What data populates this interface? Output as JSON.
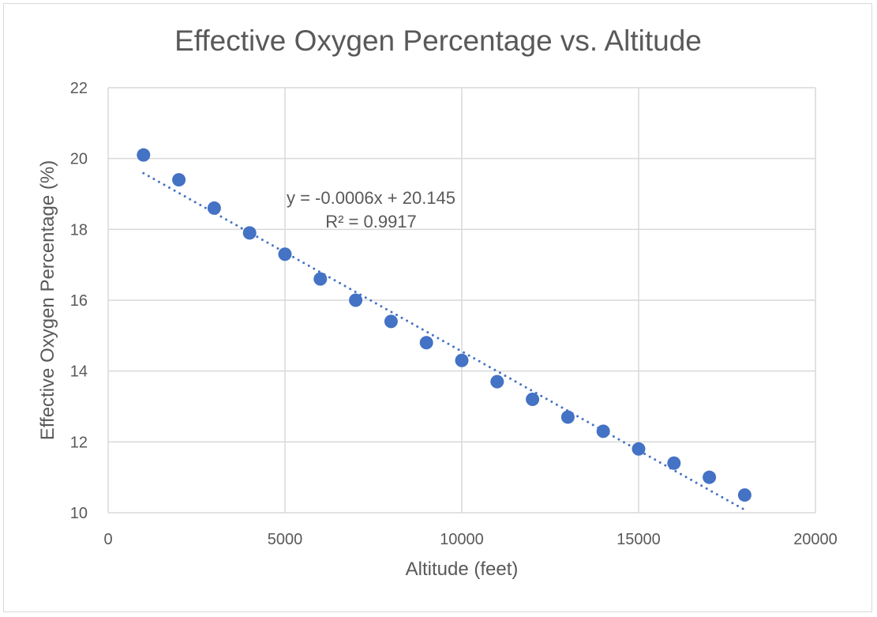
{
  "chart_data": {
    "type": "scatter",
    "title": "Effective Oxygen Percentage vs. Altitude",
    "xlabel": "Altitude (feet)",
    "ylabel": "Effective Oxygen Percentage (%)",
    "xlim": [
      0,
      20000
    ],
    "ylim": [
      10,
      22
    ],
    "xticks": [
      0,
      5000,
      10000,
      15000,
      20000
    ],
    "yticks": [
      10,
      12,
      14,
      16,
      18,
      20,
      22
    ],
    "grid": true,
    "x": [
      1000,
      2000,
      3000,
      4000,
      5000,
      6000,
      7000,
      8000,
      9000,
      10000,
      11000,
      12000,
      13000,
      14000,
      15000,
      16000,
      17000,
      18000
    ],
    "y": [
      20.1,
      19.4,
      18.6,
      17.9,
      17.3,
      16.6,
      16.0,
      15.4,
      14.8,
      14.3,
      13.7,
      13.2,
      12.7,
      12.3,
      11.8,
      11.4,
      11.0,
      10.5
    ],
    "trendline": {
      "type": "linear",
      "style": "dotted",
      "equation": "y = -0.0006x + 20.145",
      "r_squared": "R² = 0.9917"
    },
    "colors": {
      "marker": "#4472c4",
      "grid": "#d9d9d9",
      "text": "#595959"
    }
  }
}
